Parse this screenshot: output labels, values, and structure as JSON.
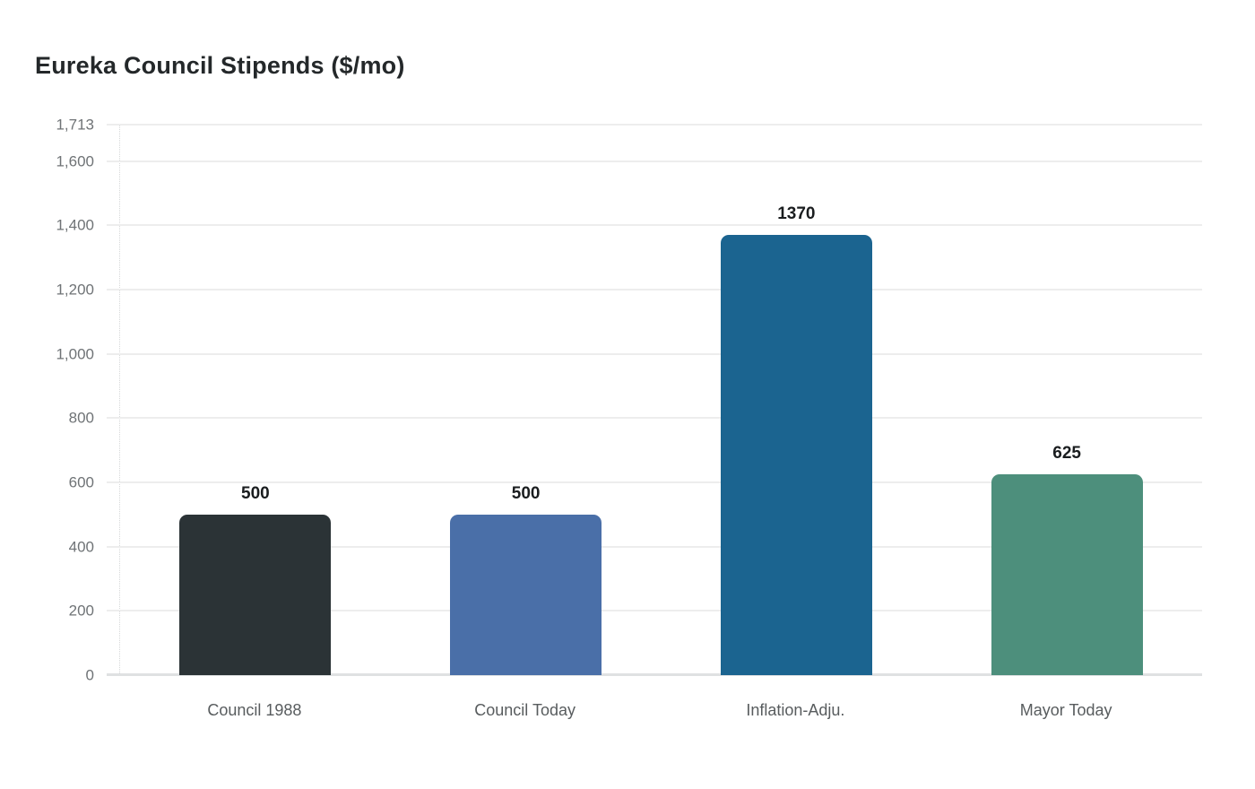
{
  "chart_data": {
    "type": "bar",
    "title": "Eureka Council Stipends ($/mo)",
    "categories": [
      "Council 1988",
      "Council Today",
      "Inflation-Adju.",
      "Mayor Today"
    ],
    "values": [
      500,
      500,
      1370,
      625
    ],
    "value_labels": [
      "500",
      "500",
      "1370",
      "625"
    ],
    "bar_colors": [
      "#2b3336",
      "#4a6fa8",
      "#1b6490",
      "#4d8f7c"
    ],
    "xlabel": "",
    "ylabel": "",
    "ylim": [
      0,
      1713
    ],
    "y_ticks": [
      {
        "value": 1713,
        "label": "1,713"
      },
      {
        "value": 1600,
        "label": "1,600"
      },
      {
        "value": 1400,
        "label": "1,400"
      },
      {
        "value": 1200,
        "label": "1,200"
      },
      {
        "value": 1000,
        "label": "1,000"
      },
      {
        "value": 800,
        "label": "800"
      },
      {
        "value": 600,
        "label": "600"
      },
      {
        "value": 400,
        "label": "400"
      },
      {
        "value": 200,
        "label": "200"
      },
      {
        "value": 0,
        "label": "0"
      }
    ],
    "grid": true,
    "legend_position": "none",
    "colors": {
      "background": "#ffffff",
      "grid": "#ededed",
      "baseline": "#dfe1e2",
      "axis_border": "#d6d8d9",
      "tick_label": "#6f7376",
      "category_label": "#585c5e",
      "value_label": "#1a1d1f",
      "title": "#24282a"
    }
  }
}
